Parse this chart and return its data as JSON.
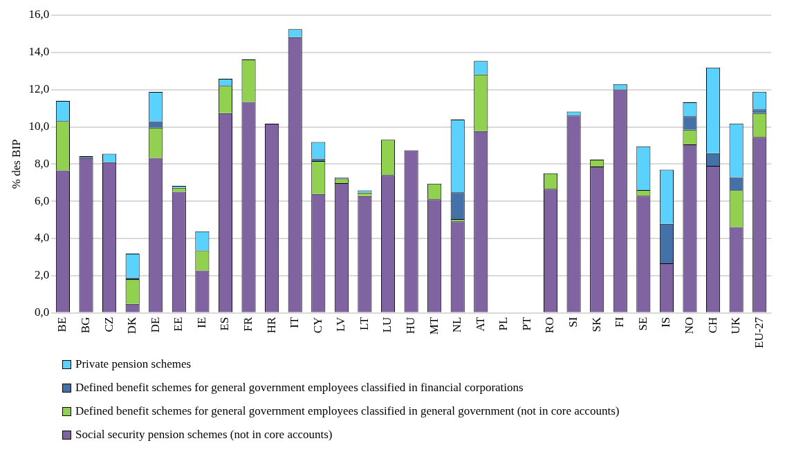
{
  "chart_data": {
    "type": "bar",
    "stacked": true,
    "ylabel": "% des BIP",
    "categories": [
      "BE",
      "BG",
      "CZ",
      "DK",
      "DE",
      "EE",
      "IE",
      "ES",
      "FR",
      "HR",
      "IT",
      "CY",
      "LV",
      "LT",
      "LU",
      "HU",
      "MT",
      "NL",
      "AT",
      "PL",
      "PT",
      "RO",
      "SI",
      "SK",
      "FI",
      "SE",
      "IS",
      "NO",
      "CH",
      "UK",
      "EU-27"
    ],
    "series": [
      {
        "name": "Social security pension schemes (not in core accounts)",
        "color": "#8064a2",
        "values": [
          7.66,
          8.32,
          8.1,
          0.48,
          8.33,
          6.51,
          2.27,
          10.73,
          11.34,
          10.17,
          14.82,
          6.39,
          6.97,
          6.28,
          7.41,
          8.74,
          6.11,
          4.92,
          9.77,
          null,
          null,
          6.67,
          10.6,
          7.86,
          12.01,
          6.29,
          2.66,
          9.05,
          7.9,
          4.61,
          9.45
        ]
      },
      {
        "name": "Defined benefit schemes for general government employees classified in general government (not in core accounts)",
        "color": "#92d050",
        "values": [
          2.65,
          0,
          0,
          1.33,
          1.62,
          0.21,
          1.08,
          1.47,
          2.28,
          0,
          0,
          1.77,
          0.24,
          0.18,
          1.89,
          0,
          0.83,
          0.12,
          3.04,
          null,
          null,
          0.83,
          0,
          0.38,
          0,
          0.31,
          0,
          0.79,
          0,
          1.98,
          1.28
        ]
      },
      {
        "name": "Defined benefit schemes for general government employees classified in financial corporations",
        "color": "#4472a8",
        "values": [
          0,
          0.1,
          0,
          0.08,
          0.35,
          0,
          0,
          0,
          0,
          0,
          0,
          0.13,
          0,
          0,
          0,
          0,
          0,
          1.44,
          0,
          null,
          null,
          0,
          0,
          0,
          0,
          0,
          2.13,
          0.73,
          0.68,
          0.7,
          0.21
        ]
      },
      {
        "name": "Private pension schemes",
        "color": "#5bd2fd",
        "values": [
          1.08,
          0,
          0.45,
          1.29,
          1.58,
          0.1,
          1.03,
          0.38,
          0,
          0,
          0.43,
          0.89,
          0.06,
          0.12,
          0,
          0,
          0,
          3.91,
          0.73,
          null,
          null,
          0,
          0.22,
          0,
          0.28,
          2.35,
          2.91,
          0.75,
          4.61,
          2.89,
          0.95
        ]
      }
    ],
    "ylim": [
      0,
      16
    ],
    "yticks": [
      {
        "value": 0,
        "label": "0,0"
      },
      {
        "value": 2,
        "label": "2,0"
      },
      {
        "value": 4,
        "label": "4,0"
      },
      {
        "value": 6,
        "label": "6,0"
      },
      {
        "value": 8,
        "label": "8,0"
      },
      {
        "value": 10,
        "label": "10,0"
      },
      {
        "value": 12,
        "label": "12,0"
      },
      {
        "value": 14,
        "label": "14,0"
      },
      {
        "value": 16,
        "label": "16,0"
      }
    ],
    "grid": "y",
    "legend": "bottom"
  }
}
